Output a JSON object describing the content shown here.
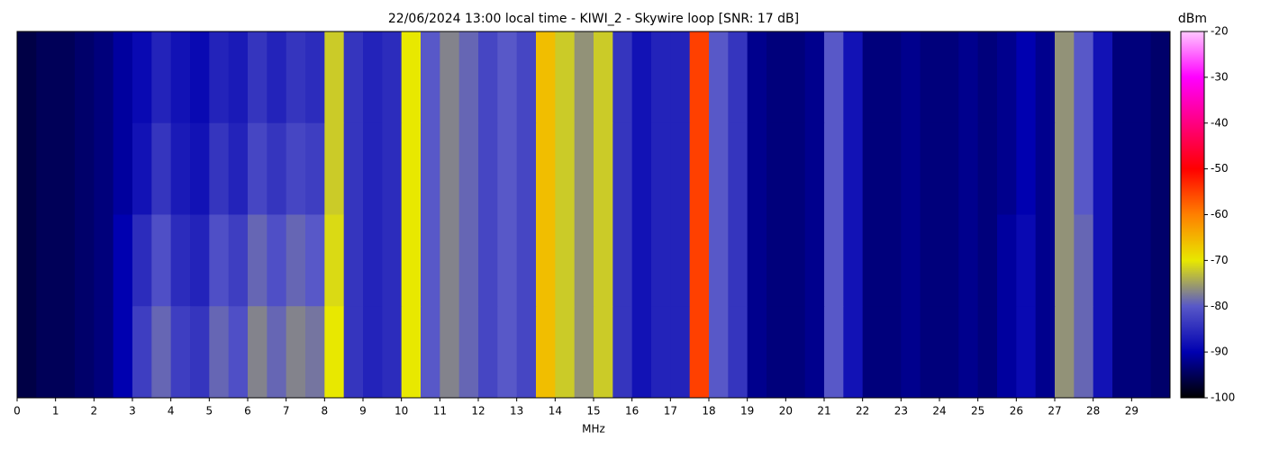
{
  "chart_data": {
    "type": "heatmap",
    "title": "22/06/2024 13:00 local time - KIWI_2 - Skywire loop [SNR: 17 dB]",
    "xlabel": "MHz",
    "colorbar_label": "dBm",
    "xlim": [
      0,
      30
    ],
    "xticks": [
      0,
      1,
      2,
      3,
      4,
      5,
      6,
      7,
      8,
      9,
      10,
      11,
      12,
      13,
      14,
      15,
      16,
      17,
      18,
      19,
      20,
      21,
      22,
      23,
      24,
      25,
      26,
      27,
      28,
      29
    ],
    "xbins": [
      0,
      0.5,
      1,
      1.5,
      2,
      2.5,
      3,
      3.5,
      4,
      4.5,
      5,
      5.5,
      6,
      6.5,
      7,
      7.5,
      8,
      8.5,
      9,
      9.5,
      10,
      10.5,
      11,
      11.5,
      12,
      12.5,
      13,
      13.5,
      14,
      14.5,
      15,
      15.5,
      16,
      16.5,
      17,
      17.5,
      18,
      18.5,
      19,
      19.5,
      20,
      20.5,
      21,
      21.5,
      22,
      22.5,
      23,
      23.5,
      24,
      24.5,
      25,
      25.5,
      26,
      26.5,
      27,
      27.5,
      28,
      28.5,
      29,
      29.5,
      30
    ],
    "zlim": [
      -100,
      -20
    ],
    "zticks": [
      -20,
      -30,
      -40,
      -50,
      -60,
      -70,
      -80,
      -90,
      -100
    ],
    "colorscale": [
      "#000000",
      "#0000b0",
      "#5858c8",
      "#e8e800",
      "#ff8000",
      "#ff0000",
      "#ff0080",
      "#ff00ff",
      "#ffc8ff"
    ],
    "values": [
      [
        -96,
        -95,
        -95,
        -94,
        -93,
        -91,
        -89,
        -86,
        -88,
        -89,
        -86,
        -87,
        -84,
        -86,
        -84,
        -85,
        -72,
        -84,
        -86,
        -85,
        -70,
        -80,
        -77,
        -79,
        -82,
        -80,
        -82,
        -66,
        -72,
        -76,
        -72,
        -84,
        -88,
        -86,
        -86,
        -55,
        -80,
        -84,
        -92,
        -93,
        -93,
        -92,
        -80,
        -88,
        -93,
        -93,
        -92,
        -93,
        -93,
        -92,
        -93,
        -92,
        -90,
        -92,
        -76,
        -80,
        -88,
        -93,
        -93,
        -94
      ],
      [
        -96,
        -95,
        -95,
        -94,
        -93,
        -91,
        -88,
        -84,
        -87,
        -88,
        -84,
        -86,
        -82,
        -84,
        -82,
        -83,
        -72,
        -84,
        -86,
        -85,
        -70,
        -80,
        -77,
        -79,
        -82,
        -80,
        -82,
        -66,
        -72,
        -76,
        -72,
        -84,
        -88,
        -86,
        -86,
        -55,
        -80,
        -84,
        -92,
        -93,
        -93,
        -92,
        -80,
        -88,
        -93,
        -93,
        -92,
        -93,
        -93,
        -92,
        -93,
        -92,
        -90,
        -92,
        -76,
        -80,
        -88,
        -93,
        -93,
        -94
      ],
      [
        -96,
        -95,
        -95,
        -94,
        -93,
        -90,
        -85,
        -81,
        -85,
        -86,
        -81,
        -83,
        -79,
        -81,
        -79,
        -80,
        -71,
        -84,
        -86,
        -85,
        -70,
        -80,
        -77,
        -79,
        -82,
        -80,
        -82,
        -66,
        -72,
        -76,
        -72,
        -84,
        -88,
        -86,
        -86,
        -55,
        -80,
        -84,
        -92,
        -93,
        -93,
        -92,
        -80,
        -88,
        -93,
        -93,
        -92,
        -93,
        -93,
        -92,
        -93,
        -91,
        -89,
        -92,
        -76,
        -79,
        -88,
        -93,
        -93,
        -94
      ],
      [
        -96,
        -95,
        -95,
        -94,
        -93,
        -90,
        -83,
        -79,
        -83,
        -84,
        -79,
        -81,
        -77,
        -79,
        -77,
        -78,
        -70,
        -84,
        -86,
        -85,
        -70,
        -80,
        -77,
        -79,
        -82,
        -80,
        -82,
        -66,
        -72,
        -76,
        -72,
        -84,
        -88,
        -86,
        -86,
        -55,
        -80,
        -84,
        -92,
        -93,
        -93,
        -92,
        -80,
        -88,
        -93,
        -93,
        -92,
        -93,
        -93,
        -92,
        -93,
        -91,
        -89,
        -92,
        -76,
        -79,
        -88,
        -93,
        -93,
        -94
      ]
    ]
  }
}
